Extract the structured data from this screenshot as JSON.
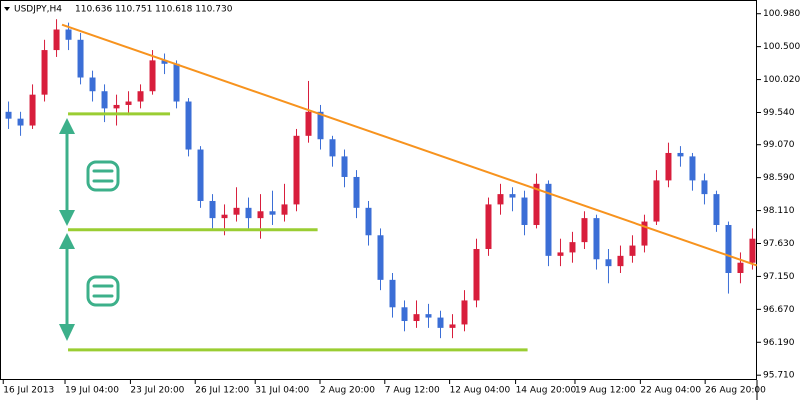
{
  "chart_data": {
    "type": "candlestick",
    "title": "USDJPY,H4",
    "subtitle": "110.636 110.751 110.618 110.730",
    "up_color": "#d81e3c",
    "down_color": "#3b6ed6",
    "xlim": [
      -0.67,
      62.42
    ],
    "ylim": [
      95.64,
      101.18
    ],
    "yticks": [
      {
        "value": 100.98,
        "label": "100.980"
      },
      {
        "value": 100.5,
        "label": "100.500"
      },
      {
        "value": 100.02,
        "label": "100.020"
      },
      {
        "value": 99.54,
        "label": "99.540"
      },
      {
        "value": 99.07,
        "label": "99.070"
      },
      {
        "value": 98.59,
        "label": "98.590"
      },
      {
        "value": 98.11,
        "label": "98.110"
      },
      {
        "value": 97.63,
        "label": "97.630"
      },
      {
        "value": 97.15,
        "label": "97.150"
      },
      {
        "value": 96.67,
        "label": "96.670"
      },
      {
        "value": 96.19,
        "label": "96.190"
      },
      {
        "value": 95.71,
        "label": "95.710"
      }
    ],
    "xticks": [
      {
        "value": -0.4,
        "label": "16 Jul 2013"
      },
      {
        "value": 4.75,
        "label": "19 Jul 04:00"
      },
      {
        "value": 10.2,
        "label": "23 Jul 20:00"
      },
      {
        "value": 15.6,
        "label": "26 Jul 12:00"
      },
      {
        "value": 20.6,
        "label": "31 Jul 04:00"
      },
      {
        "value": 26,
        "label": "2 Aug 20:00"
      },
      {
        "value": 31.4,
        "label": "7 Aug 12:00"
      },
      {
        "value": 36.8,
        "label": "12 Aug 04:00"
      },
      {
        "value": 42.3,
        "label": "14 Aug 20:00"
      },
      {
        "value": 47.25,
        "label": "19 Aug 12:00"
      },
      {
        "value": 52.7,
        "label": "22 Aug 04:00"
      },
      {
        "value": 58.1,
        "label": "26 Aug 20:00"
      }
    ],
    "candles": [
      [
        99.55,
        99.7,
        99.3,
        99.45
      ],
      [
        99.45,
        99.55,
        99.2,
        99.35
      ],
      [
        99.35,
        99.95,
        99.3,
        99.8
      ],
      [
        99.8,
        100.6,
        99.7,
        100.45
      ],
      [
        100.45,
        100.9,
        100.35,
        100.75
      ],
      [
        100.75,
        100.85,
        100.45,
        100.6
      ],
      [
        100.6,
        100.7,
        99.95,
        100.05
      ],
      [
        100.05,
        100.15,
        99.7,
        99.85
      ],
      [
        99.85,
        99.95,
        99.4,
        99.6
      ],
      [
        99.6,
        99.8,
        99.35,
        99.65
      ],
      [
        99.65,
        99.85,
        99.5,
        99.7
      ],
      [
        99.7,
        99.95,
        99.6,
        99.85
      ],
      [
        99.85,
        100.45,
        99.8,
        100.3
      ],
      [
        100.3,
        100.4,
        100.1,
        100.25
      ],
      [
        100.25,
        100.3,
        99.6,
        99.7
      ],
      [
        99.7,
        99.75,
        98.9,
        99.0
      ],
      [
        99.0,
        99.05,
        98.15,
        98.25
      ],
      [
        98.25,
        98.35,
        97.85,
        98.0
      ],
      [
        98.0,
        98.2,
        97.75,
        98.05
      ],
      [
        98.05,
        98.45,
        97.95,
        98.15
      ],
      [
        98.15,
        98.3,
        97.85,
        98.0
      ],
      [
        98.0,
        98.35,
        97.7,
        98.1
      ],
      [
        98.1,
        98.4,
        97.9,
        98.05
      ],
      [
        98.05,
        98.5,
        97.95,
        98.2
      ],
      [
        98.2,
        99.3,
        98.1,
        99.2
      ],
      [
        99.2,
        100.0,
        99.1,
        99.55
      ],
      [
        99.55,
        99.65,
        99.0,
        99.15
      ],
      [
        99.15,
        99.2,
        98.75,
        98.9
      ],
      [
        98.9,
        99.0,
        98.45,
        98.6
      ],
      [
        98.6,
        98.7,
        98.0,
        98.15
      ],
      [
        98.15,
        98.25,
        97.6,
        97.75
      ],
      [
        97.75,
        97.85,
        96.95,
        97.1
      ],
      [
        97.1,
        97.2,
        96.55,
        96.7
      ],
      [
        96.7,
        96.8,
        96.35,
        96.5
      ],
      [
        96.5,
        96.8,
        96.4,
        96.6
      ],
      [
        96.6,
        96.75,
        96.4,
        96.55
      ],
      [
        96.55,
        96.65,
        96.25,
        96.4
      ],
      [
        96.4,
        96.6,
        96.25,
        96.45
      ],
      [
        96.45,
        96.95,
        96.35,
        96.8
      ],
      [
        96.8,
        97.7,
        96.7,
        97.55
      ],
      [
        97.55,
        98.3,
        97.45,
        98.2
      ],
      [
        98.2,
        98.5,
        98.05,
        98.35
      ],
      [
        98.35,
        98.45,
        98.1,
        98.3
      ],
      [
        98.3,
        98.4,
        97.75,
        97.9
      ],
      [
        97.9,
        98.65,
        97.85,
        98.5
      ],
      [
        98.5,
        98.55,
        97.3,
        97.45
      ],
      [
        97.45,
        97.7,
        97.3,
        97.5
      ],
      [
        97.5,
        97.8,
        97.35,
        97.65
      ],
      [
        97.65,
        98.1,
        97.55,
        98.0
      ],
      [
        98.0,
        98.05,
        97.25,
        97.4
      ],
      [
        97.4,
        97.55,
        97.05,
        97.3
      ],
      [
        97.3,
        97.6,
        97.2,
        97.45
      ],
      [
        97.45,
        97.75,
        97.35,
        97.6
      ],
      [
        97.6,
        98.05,
        97.5,
        97.95
      ],
      [
        97.95,
        98.7,
        97.9,
        98.55
      ],
      [
        98.55,
        99.1,
        98.45,
        98.95
      ],
      [
        98.95,
        99.05,
        98.75,
        98.9
      ],
      [
        98.9,
        98.95,
        98.4,
        98.55
      ],
      [
        98.55,
        98.65,
        98.2,
        98.35
      ],
      [
        98.35,
        98.4,
        97.8,
        97.9
      ],
      [
        97.9,
        97.95,
        96.9,
        97.2
      ],
      [
        97.2,
        97.5,
        97.05,
        97.35
      ],
      [
        97.35,
        97.85,
        97.25,
        97.7
      ]
    ],
    "trendline": {
      "x": [
        4.5,
        62.4
      ],
      "y": [
        100.82,
        97.31
      ],
      "color": "#f7931e"
    },
    "levels": [
      {
        "y": 99.52,
        "x": [
          5,
          13.5
        ]
      },
      {
        "y": 97.83,
        "x": [
          5,
          25.8
        ]
      },
      {
        "y": 96.08,
        "x": [
          5,
          43.3
        ]
      }
    ],
    "level_color": "#9acd32"
  }
}
